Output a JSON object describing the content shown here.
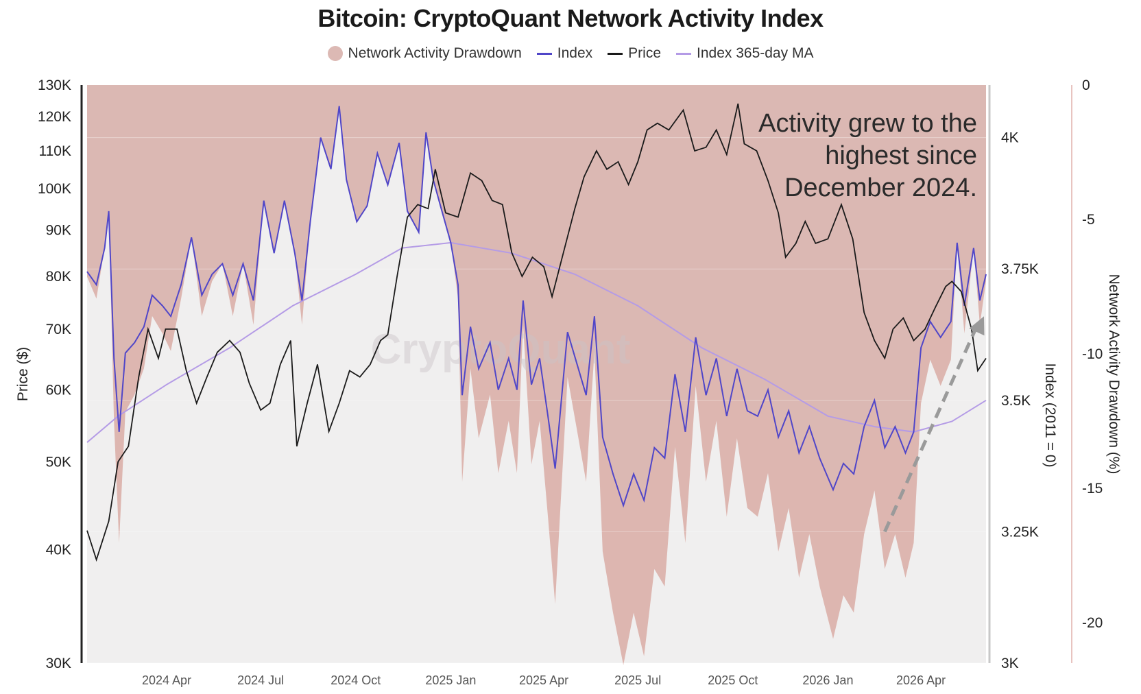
{
  "chart_data": {
    "type": "area",
    "title": "Bitcoin: CryptoQuant Network Activity Index",
    "legend": [
      {
        "name": "Network Activity Drawdown",
        "color": "#dcb9b4",
        "kind": "dot"
      },
      {
        "name": "Index",
        "color": "#5046c8",
        "kind": "line"
      },
      {
        "name": "Price",
        "color": "#1a1a1a",
        "kind": "line"
      },
      {
        "name": "Index 365-day MA",
        "color": "#b49be6",
        "kind": "line"
      }
    ],
    "left_axis": {
      "label": "Price ($)",
      "scale": "log",
      "range": [
        30000,
        130000
      ],
      "ticks": [
        {
          "v": 130000,
          "label": "130K"
        },
        {
          "v": 120000,
          "label": "120K"
        },
        {
          "v": 110000,
          "label": "110K"
        },
        {
          "v": 100000,
          "label": "100K"
        },
        {
          "v": 90000,
          "label": "90K"
        },
        {
          "v": 80000,
          "label": "80K"
        },
        {
          "v": 70000,
          "label": "70K"
        },
        {
          "v": 60000,
          "label": "60K"
        },
        {
          "v": 50000,
          "label": "50K"
        },
        {
          "v": 40000,
          "label": "40K"
        },
        {
          "v": 30000,
          "label": "30K"
        }
      ]
    },
    "index_axis": {
      "label": "Index (2011 = 0)",
      "range": [
        3000,
        4100
      ],
      "ticks": [
        {
          "v": 4000,
          "label": "4K"
        },
        {
          "v": 3750,
          "label": "3.75K"
        },
        {
          "v": 3500,
          "label": "3.5K"
        },
        {
          "v": 3250,
          "label": "3.25K"
        },
        {
          "v": 3000,
          "label": "3K"
        }
      ]
    },
    "drawdown_axis": {
      "label": "Network Activity Drawdown (%)",
      "range": [
        -21.5,
        0
      ],
      "ticks": [
        {
          "v": 0,
          "label": "0"
        },
        {
          "v": -5,
          "label": "-5"
        },
        {
          "v": -10,
          "label": "-10"
        },
        {
          "v": -15,
          "label": "-15"
        },
        {
          "v": -20,
          "label": "-20"
        }
      ]
    },
    "x_axis": {
      "range": [
        "2024-01-15",
        "2026-06-03"
      ],
      "ticks": [
        {
          "date": "2024-04-01",
          "label": "2024 Apr"
        },
        {
          "date": "2024-07-01",
          "label": "2024 Jul"
        },
        {
          "date": "2024-10-01",
          "label": "2024 Oct"
        },
        {
          "date": "2025-01-01",
          "label": "2025 Jan"
        },
        {
          "date": "2025-04-01",
          "label": "2025 Apr"
        },
        {
          "date": "2025-07-01",
          "label": "2025 Jul"
        },
        {
          "date": "2025-10-01",
          "label": "2025 Oct"
        },
        {
          "date": "2026-01-01",
          "label": "2026 Jan"
        },
        {
          "date": "2026-04-01",
          "label": "2026 Apr"
        }
      ]
    },
    "series": [
      {
        "name": "Price",
        "axis": "price",
        "points": [
          [
            "2024-01-15",
            42000
          ],
          [
            "2024-01-24",
            39000
          ],
          [
            "2024-02-05",
            43000
          ],
          [
            "2024-02-14",
            50000
          ],
          [
            "2024-02-24",
            52000
          ],
          [
            "2024-03-05",
            62000
          ],
          [
            "2024-03-14",
            70000
          ],
          [
            "2024-03-24",
            65000
          ],
          [
            "2024-03-31",
            70000
          ],
          [
            "2024-04-11",
            70000
          ],
          [
            "2024-04-20",
            63000
          ],
          [
            "2024-04-30",
            58000
          ],
          [
            "2024-05-10",
            62000
          ],
          [
            "2024-05-20",
            66000
          ],
          [
            "2024-06-01",
            68000
          ],
          [
            "2024-06-11",
            66000
          ],
          [
            "2024-06-20",
            61000
          ],
          [
            "2024-07-01",
            57000
          ],
          [
            "2024-07-10",
            58000
          ],
          [
            "2024-07-20",
            64000
          ],
          [
            "2024-07-30",
            68000
          ],
          [
            "2024-08-05",
            52000
          ],
          [
            "2024-08-15",
            58000
          ],
          [
            "2024-08-25",
            64000
          ],
          [
            "2024-09-05",
            54000
          ],
          [
            "2024-09-15",
            58000
          ],
          [
            "2024-09-25",
            63000
          ],
          [
            "2024-10-05",
            62000
          ],
          [
            "2024-10-15",
            64000
          ],
          [
            "2024-10-25",
            68000
          ],
          [
            "2024-11-01",
            69000
          ],
          [
            "2024-11-10",
            80000
          ],
          [
            "2024-11-20",
            93000
          ],
          [
            "2024-11-30",
            96000
          ],
          [
            "2024-12-10",
            95000
          ],
          [
            "2024-12-17",
            105000
          ],
          [
            "2024-12-27",
            94000
          ],
          [
            "2025-01-08",
            93000
          ],
          [
            "2025-01-20",
            104000
          ],
          [
            "2025-01-31",
            102000
          ],
          [
            "2025-02-10",
            97000
          ],
          [
            "2025-02-20",
            96000
          ],
          [
            "2025-03-01",
            85000
          ],
          [
            "2025-03-11",
            80000
          ],
          [
            "2025-03-21",
            84000
          ],
          [
            "2025-04-01",
            82000
          ],
          [
            "2025-04-09",
            76000
          ],
          [
            "2025-04-20",
            85000
          ],
          [
            "2025-05-01",
            95000
          ],
          [
            "2025-05-10",
            103000
          ],
          [
            "2025-05-22",
            110000
          ],
          [
            "2025-06-01",
            105000
          ],
          [
            "2025-06-12",
            107000
          ],
          [
            "2025-06-22",
            101000
          ],
          [
            "2025-07-01",
            107000
          ],
          [
            "2025-07-10",
            116000
          ],
          [
            "2025-07-20",
            118000
          ],
          [
            "2025-07-31",
            116000
          ],
          [
            "2025-08-14",
            122000
          ],
          [
            "2025-08-25",
            110000
          ],
          [
            "2025-09-05",
            111000
          ],
          [
            "2025-09-15",
            116000
          ],
          [
            "2025-09-25",
            109000
          ],
          [
            "2025-10-06",
            124000
          ],
          [
            "2025-10-12",
            112000
          ],
          [
            "2025-10-24",
            110000
          ],
          [
            "2025-11-04",
            102000
          ],
          [
            "2025-11-14",
            94000
          ],
          [
            "2025-11-21",
            84000
          ],
          [
            "2025-12-01",
            87000
          ],
          [
            "2025-12-10",
            92000
          ],
          [
            "2025-12-20",
            87000
          ],
          [
            "2026-01-01",
            88000
          ],
          [
            "2026-01-14",
            96000
          ],
          [
            "2026-01-25",
            88000
          ],
          [
            "2026-02-05",
            73000
          ],
          [
            "2026-02-15",
            68000
          ],
          [
            "2026-02-25",
            65000
          ],
          [
            "2026-03-05",
            70000
          ],
          [
            "2026-03-15",
            72000
          ],
          [
            "2026-03-25",
            68000
          ],
          [
            "2026-04-05",
            70000
          ],
          [
            "2026-04-15",
            74000
          ],
          [
            "2026-04-25",
            78000
          ],
          [
            "2026-05-01",
            79000
          ],
          [
            "2026-05-10",
            77000
          ],
          [
            "2026-05-20",
            70000
          ],
          [
            "2026-05-26",
            63000
          ],
          [
            "2026-06-03",
            65000
          ]
        ]
      },
      {
        "name": "Index",
        "axis": "index",
        "points": [
          [
            "2024-01-15",
            3745
          ],
          [
            "2024-01-24",
            3720
          ],
          [
            "2024-02-01",
            3790
          ],
          [
            "2024-02-05",
            3860
          ],
          [
            "2024-02-10",
            3580
          ],
          [
            "2024-02-15",
            3440
          ],
          [
            "2024-02-21",
            3590
          ],
          [
            "2024-03-01",
            3610
          ],
          [
            "2024-03-10",
            3640
          ],
          [
            "2024-03-18",
            3700
          ],
          [
            "2024-03-28",
            3680
          ],
          [
            "2024-04-05",
            3660
          ],
          [
            "2024-04-15",
            3720
          ],
          [
            "2024-04-25",
            3810
          ],
          [
            "2024-05-05",
            3700
          ],
          [
            "2024-05-15",
            3740
          ],
          [
            "2024-05-25",
            3760
          ],
          [
            "2024-06-04",
            3700
          ],
          [
            "2024-06-14",
            3760
          ],
          [
            "2024-06-24",
            3690
          ],
          [
            "2024-07-04",
            3880
          ],
          [
            "2024-07-14",
            3780
          ],
          [
            "2024-07-24",
            3880
          ],
          [
            "2024-08-03",
            3780
          ],
          [
            "2024-08-10",
            3690
          ],
          [
            "2024-08-18",
            3840
          ],
          [
            "2024-08-28",
            4000
          ],
          [
            "2024-09-07",
            3940
          ],
          [
            "2024-09-15",
            4060
          ],
          [
            "2024-09-22",
            3920
          ],
          [
            "2024-10-02",
            3840
          ],
          [
            "2024-10-12",
            3870
          ],
          [
            "2024-10-22",
            3970
          ],
          [
            "2024-11-01",
            3910
          ],
          [
            "2024-11-12",
            3990
          ],
          [
            "2024-11-20",
            3860
          ],
          [
            "2024-12-01",
            3820
          ],
          [
            "2024-12-08",
            4010
          ],
          [
            "2024-12-15",
            3920
          ],
          [
            "2024-12-22",
            3870
          ],
          [
            "2025-01-01",
            3800
          ],
          [
            "2025-01-08",
            3720
          ],
          [
            "2025-01-12",
            3510
          ],
          [
            "2025-01-20",
            3640
          ],
          [
            "2025-01-28",
            3560
          ],
          [
            "2025-02-08",
            3610
          ],
          [
            "2025-02-16",
            3520
          ],
          [
            "2025-02-26",
            3580
          ],
          [
            "2025-03-06",
            3520
          ],
          [
            "2025-03-12",
            3690
          ],
          [
            "2025-03-20",
            3530
          ],
          [
            "2025-03-28",
            3580
          ],
          [
            "2025-04-05",
            3470
          ],
          [
            "2025-04-12",
            3370
          ],
          [
            "2025-04-24",
            3630
          ],
          [
            "2025-05-03",
            3570
          ],
          [
            "2025-05-12",
            3510
          ],
          [
            "2025-05-20",
            3660
          ],
          [
            "2025-05-28",
            3430
          ],
          [
            "2025-06-07",
            3360
          ],
          [
            "2025-06-17",
            3300
          ],
          [
            "2025-06-27",
            3360
          ],
          [
            "2025-07-07",
            3310
          ],
          [
            "2025-07-17",
            3410
          ],
          [
            "2025-07-27",
            3390
          ],
          [
            "2025-08-06",
            3550
          ],
          [
            "2025-08-16",
            3440
          ],
          [
            "2025-08-26",
            3620
          ],
          [
            "2025-09-05",
            3510
          ],
          [
            "2025-09-15",
            3580
          ],
          [
            "2025-09-25",
            3470
          ],
          [
            "2025-10-05",
            3560
          ],
          [
            "2025-10-15",
            3480
          ],
          [
            "2025-10-25",
            3470
          ],
          [
            "2025-11-04",
            3520
          ],
          [
            "2025-11-14",
            3430
          ],
          [
            "2025-11-24",
            3480
          ],
          [
            "2025-12-04",
            3400
          ],
          [
            "2025-12-14",
            3450
          ],
          [
            "2025-12-24",
            3390
          ],
          [
            "2026-01-06",
            3330
          ],
          [
            "2026-01-16",
            3380
          ],
          [
            "2026-01-26",
            3360
          ],
          [
            "2026-02-05",
            3450
          ],
          [
            "2026-02-15",
            3500
          ],
          [
            "2026-02-25",
            3410
          ],
          [
            "2026-03-07",
            3450
          ],
          [
            "2026-03-17",
            3400
          ],
          [
            "2026-03-25",
            3440
          ],
          [
            "2026-04-01",
            3600
          ],
          [
            "2026-04-10",
            3650
          ],
          [
            "2026-04-20",
            3620
          ],
          [
            "2026-04-30",
            3650
          ],
          [
            "2026-05-06",
            3800
          ],
          [
            "2026-05-13",
            3680
          ],
          [
            "2026-05-22",
            3790
          ],
          [
            "2026-05-28",
            3690
          ],
          [
            "2026-06-03",
            3740
          ]
        ]
      },
      {
        "name": "Index 365-day MA",
        "axis": "index",
        "points": [
          [
            "2024-01-15",
            3420
          ],
          [
            "2024-02-14",
            3470
          ],
          [
            "2024-04-01",
            3530
          ],
          [
            "2024-06-01",
            3600
          ],
          [
            "2024-08-01",
            3680
          ],
          [
            "2024-10-01",
            3740
          ],
          [
            "2024-11-15",
            3790
          ],
          [
            "2025-01-01",
            3800
          ],
          [
            "2025-03-01",
            3780
          ],
          [
            "2025-05-01",
            3740
          ],
          [
            "2025-07-01",
            3680
          ],
          [
            "2025-09-01",
            3600
          ],
          [
            "2025-11-01",
            3540
          ],
          [
            "2026-01-01",
            3470
          ],
          [
            "2026-02-15",
            3450
          ],
          [
            "2026-03-25",
            3440
          ],
          [
            "2026-05-01",
            3460
          ],
          [
            "2026-06-03",
            3500
          ]
        ]
      }
    ],
    "drawdown_area": {
      "name": "Network Activity Drawdown",
      "axis": "index",
      "note_depth_factor": 2.2
    },
    "annotation": {
      "lines": [
        "Activity grew to the",
        "highest since",
        "December 2024."
      ],
      "arrow_from": [
        "2026-02-25",
        3250
      ],
      "arrow_to": [
        "2026-06-01",
        3660
      ]
    },
    "watermark": "CryptoQuant",
    "grid": "horizontal"
  }
}
